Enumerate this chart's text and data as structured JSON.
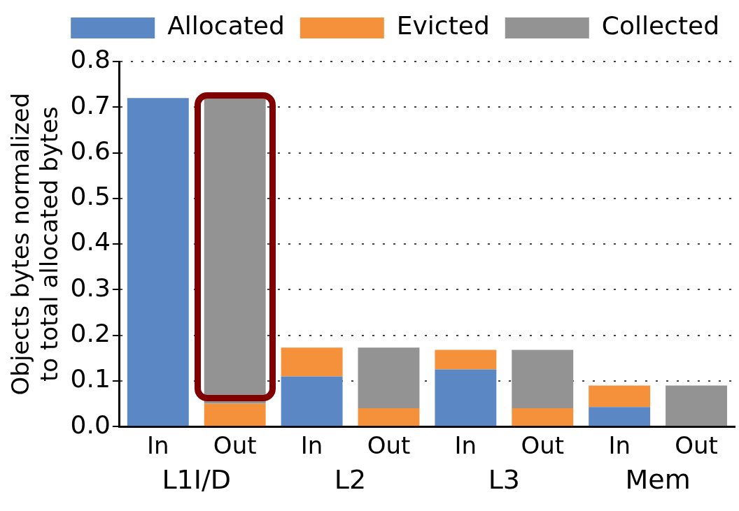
{
  "chart_data": {
    "type": "bar",
    "stacked": true,
    "ylabel": "Objects bytes normalized\nto total allocated bytes",
    "categories": [
      "In",
      "Out",
      "In",
      "Out",
      "In",
      "Out",
      "In",
      "Out"
    ],
    "series": [
      {
        "name": "Allocated",
        "color": "#5b87c5",
        "values": [
          0.72,
          0,
          0.11,
          0,
          0.125,
          0,
          0.043,
          0
        ]
      },
      {
        "name": "Evicted",
        "color": "#f5913a",
        "values": [
          0,
          0.05,
          0.063,
          0.04,
          0.043,
          0.04,
          0.047,
          0
        ]
      },
      {
        "name": "Collected",
        "color": "#939393",
        "values": [
          0,
          0.67,
          0,
          0.133,
          0,
          0.128,
          0,
          0.09
        ]
      }
    ],
    "ylim": [
      0,
      0.8
    ],
    "yticks": [
      {
        "value": 0,
        "label": "0.0"
      },
      {
        "value": 0.1,
        "label": "0.1"
      },
      {
        "value": 0.2,
        "label": "0.2"
      },
      {
        "value": 0.3,
        "label": "0.3"
      },
      {
        "value": 0.4,
        "label": "0.4"
      },
      {
        "value": 0.5,
        "label": "0.5"
      },
      {
        "value": 0.6,
        "label": "0.6"
      },
      {
        "value": 0.7,
        "label": "0.7"
      },
      {
        "value": 0.8,
        "label": "0.8"
      }
    ],
    "grid": "y",
    "legend": "top",
    "annotations": [
      "L1I/D",
      "L2",
      "L3",
      "Mem"
    ]
  }
}
